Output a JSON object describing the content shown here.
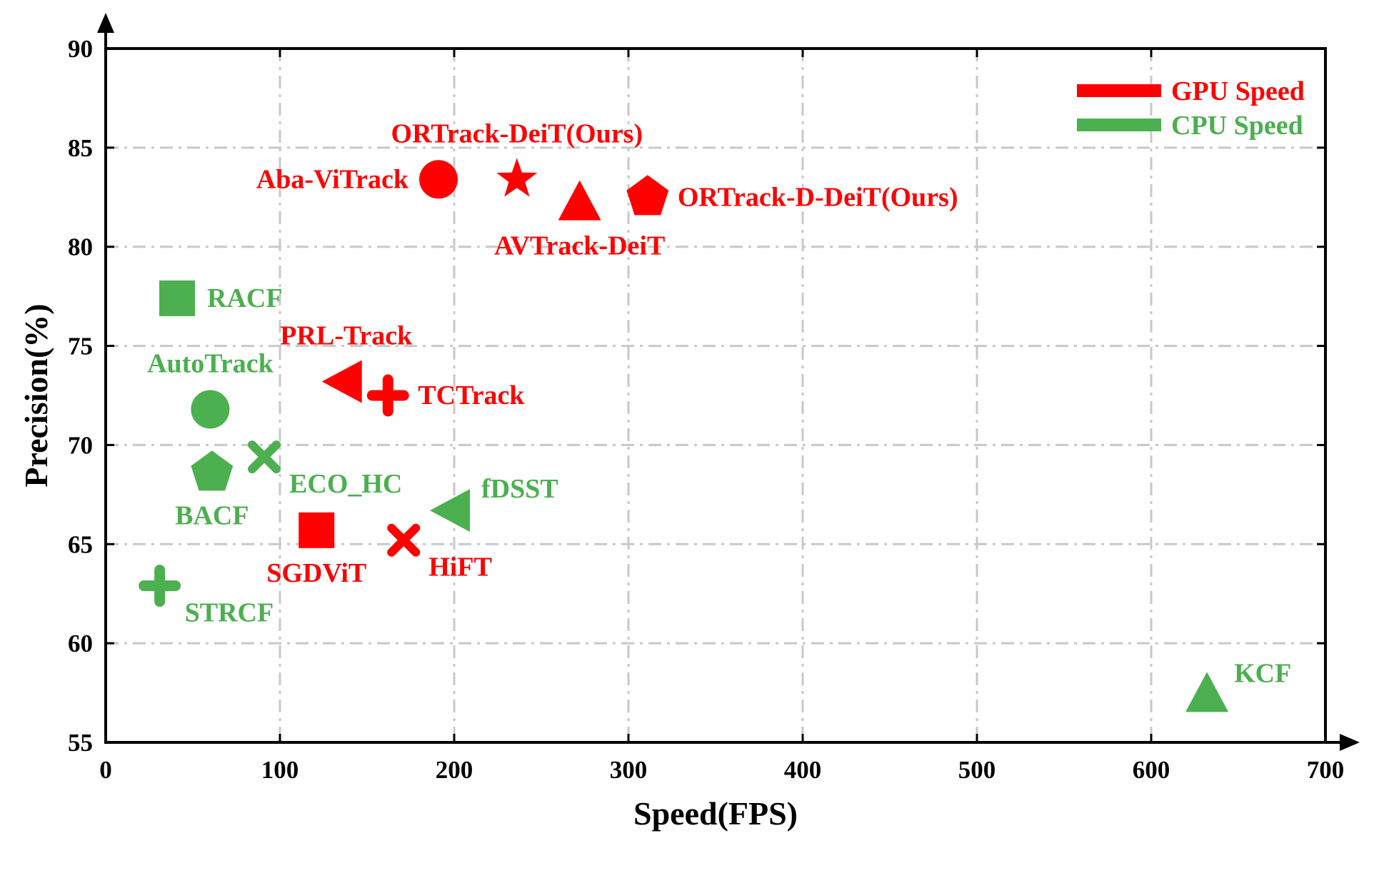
{
  "chart_data": {
    "type": "scatter",
    "title": "",
    "xlabel": "Speed(FPS)",
    "ylabel": "Precision(%)",
    "xlim": [
      0,
      700
    ],
    "ylim": [
      55,
      90
    ],
    "xticks": [
      0,
      100,
      200,
      300,
      400,
      500,
      600,
      700
    ],
    "yticks": [
      55,
      60,
      65,
      70,
      75,
      80,
      85,
      90
    ],
    "grid": true,
    "legend_position": "top-right",
    "colors": {
      "gpu": "#ff0000",
      "cpu": "#4caf50"
    },
    "legend": [
      {
        "series": "gpu",
        "label": "GPU Speed"
      },
      {
        "series": "cpu",
        "label": "CPU Speed"
      }
    ],
    "points": [
      {
        "label": "ORTrack-DeiT(Ours)",
        "x": 236,
        "y": 83.4,
        "marker": "star",
        "series": "gpu",
        "label_pos": "above"
      },
      {
        "label": "Aba-ViTrack",
        "x": 191,
        "y": 83.4,
        "marker": "circle",
        "series": "gpu",
        "label_pos": "left"
      },
      {
        "label": "AVTrack-DeiT",
        "x": 272,
        "y": 82.2,
        "marker": "triangle-up",
        "series": "gpu",
        "label_pos": "below"
      },
      {
        "label": "ORTrack-D-DeiT(Ours)",
        "x": 311,
        "y": 82.5,
        "marker": "pentagon",
        "series": "gpu",
        "label_pos": "right"
      },
      {
        "label": "RACF",
        "x": 41,
        "y": 77.4,
        "marker": "square",
        "series": "cpu",
        "label_pos": "right"
      },
      {
        "label": "PRL-Track",
        "x": 138,
        "y": 73.2,
        "marker": "triangle-left",
        "series": "gpu",
        "label_pos": "above"
      },
      {
        "label": "TCTrack",
        "x": 162,
        "y": 72.5,
        "marker": "plus",
        "series": "gpu",
        "label_pos": "right"
      },
      {
        "label": "AutoTrack",
        "x": 60,
        "y": 71.8,
        "marker": "circle",
        "series": "cpu",
        "label_pos": "above"
      },
      {
        "label": "ECO_HC",
        "x": 91,
        "y": 69.4,
        "marker": "x",
        "series": "cpu",
        "label_pos": "below-right"
      },
      {
        "label": "BACF",
        "x": 61,
        "y": 68.6,
        "marker": "pentagon",
        "series": "cpu",
        "label_pos": "below"
      },
      {
        "label": "fDSST",
        "x": 200,
        "y": 66.7,
        "marker": "triangle-left",
        "series": "cpu",
        "label_pos": "above-right"
      },
      {
        "label": "SGDViT",
        "x": 121,
        "y": 65.7,
        "marker": "square",
        "series": "gpu",
        "label_pos": "below"
      },
      {
        "label": "HiFT",
        "x": 171,
        "y": 65.2,
        "marker": "x",
        "series": "gpu",
        "label_pos": "below-right"
      },
      {
        "label": "STRCF",
        "x": 31,
        "y": 62.9,
        "marker": "plus",
        "series": "cpu",
        "label_pos": "below-right"
      },
      {
        "label": "KCF",
        "x": 632,
        "y": 57.4,
        "marker": "triangle-up",
        "series": "cpu",
        "label_pos": "above-right"
      }
    ]
  }
}
